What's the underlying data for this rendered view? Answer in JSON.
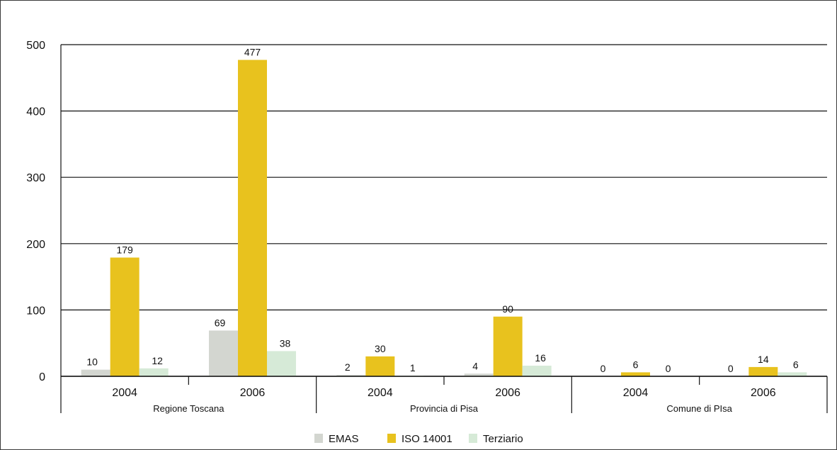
{
  "chart_data": {
    "type": "bar",
    "ylim": [
      0,
      500
    ],
    "yticks": [
      0,
      100,
      200,
      300,
      400,
      500
    ],
    "grid": true,
    "legend_position": "bottom",
    "groups": [
      {
        "region": "Regione Toscana",
        "years": [
          "2004",
          "2006"
        ]
      },
      {
        "region": "Provincia di Pisa",
        "years": [
          "2004",
          "2006"
        ]
      },
      {
        "region": "Comune di PIsa",
        "years": [
          "2004",
          "2006"
        ]
      }
    ],
    "categories": [
      "2004",
      "2006",
      "2004",
      "2006",
      "2004",
      "2006"
    ],
    "series": [
      {
        "name": "EMAS",
        "color": "#d3d6d0",
        "values": [
          10,
          69,
          2,
          4,
          0,
          0
        ]
      },
      {
        "name": "ISO 14001",
        "color": "#e8c21e",
        "values": [
          179,
          477,
          30,
          90,
          6,
          14
        ]
      },
      {
        "name": "Terziario",
        "color": "#d6ead7",
        "values": [
          12,
          38,
          1,
          16,
          0,
          6
        ]
      }
    ]
  }
}
